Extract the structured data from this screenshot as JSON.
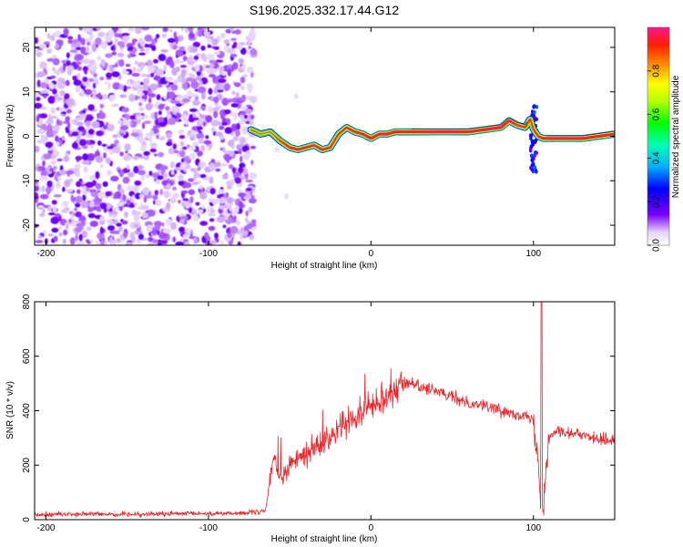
{
  "figure": {
    "title": "S196.2025.332.17.44.G12"
  },
  "chart_data": [
    {
      "id": "spectrogram",
      "type": "heatmap",
      "title": "",
      "xlabel": "Height of straight line (km)",
      "ylabel": "Frequency (Hz)",
      "xlim": [
        -207,
        150
      ],
      "ylim": [
        -24.5,
        24.5
      ],
      "xticks": [
        -200,
        -100,
        0,
        100
      ],
      "yticks": [
        -20,
        -10,
        0,
        10,
        20
      ],
      "colorbar": {
        "label": "Normalized spectral amplitude",
        "range": [
          0,
          1
        ],
        "ticks": [
          0.0,
          0.2,
          0.4,
          0.6,
          0.8
        ],
        "tick_labels": [
          "0.0",
          "0.2",
          "0.4",
          "0.6",
          "0.8"
        ]
      },
      "noise_region_x": [
        -207,
        -75
      ],
      "ridge": {
        "x": [
          -74,
          -68,
          -62,
          -56,
          -50,
          -45,
          -40,
          -35,
          -30,
          -25,
          -20,
          -15,
          -10,
          -5,
          0,
          5,
          10,
          15,
          20,
          30,
          40,
          50,
          60,
          70,
          80,
          85,
          90,
          95,
          98,
          100,
          103,
          106,
          110,
          120,
          130,
          140,
          150
        ],
        "freq": [
          1.5,
          0.5,
          1.0,
          -1.0,
          -2.5,
          -3.0,
          -2.5,
          -2.0,
          -3.0,
          -2.5,
          0.5,
          2.0,
          1.0,
          0.5,
          -0.5,
          0.5,
          0.5,
          1.0,
          1.0,
          1.0,
          1.0,
          1.0,
          1.0,
          1.5,
          2.0,
          3.5,
          2.5,
          2.0,
          4.0,
          1.5,
          0.0,
          -0.5,
          -0.5,
          -0.5,
          -0.5,
          0.0,
          0.5
        ],
        "amplitude": [
          0.5,
          0.45,
          0.45,
          0.55,
          0.75,
          0.8,
          0.75,
          0.7,
          0.75,
          0.65,
          0.6,
          0.65,
          0.75,
          0.8,
          0.85,
          0.85,
          0.9,
          0.9,
          0.8,
          0.85,
          0.95,
          0.95,
          0.85,
          0.9,
          0.95,
          0.8,
          0.7,
          0.6,
          0.55,
          0.6,
          0.65,
          0.8,
          0.9,
          0.95,
          0.9,
          0.85,
          0.8
        ]
      },
      "burst_at_x": 100,
      "burst_freq_range": [
        -8,
        7
      ]
    },
    {
      "id": "snr",
      "type": "line",
      "title": "",
      "xlabel": "Height of straight line (km)",
      "ylabel": "SNR (10 * v/v)",
      "xlim": [
        -207,
        150
      ],
      "ylim": [
        0,
        800
      ],
      "xticks": [
        -200,
        -100,
        0,
        100
      ],
      "yticks": [
        0,
        200,
        400,
        600,
        800
      ],
      "color": "#e8262c",
      "series": [
        {
          "name": "SNR",
          "x": [
            -207,
            -150,
            -100,
            -75,
            -65,
            -62,
            -60,
            -58,
            -55,
            -50,
            -45,
            -40,
            -35,
            -30,
            -25,
            -20,
            -15,
            -10,
            -5,
            0,
            5,
            10,
            15,
            20,
            25,
            30,
            35,
            40,
            50,
            60,
            70,
            80,
            90,
            95,
            100,
            102,
            104,
            106,
            108,
            110,
            115,
            120,
            130,
            140,
            150
          ],
          "y": [
            20,
            20,
            22,
            25,
            30,
            150,
            250,
            180,
            150,
            200,
            220,
            240,
            260,
            280,
            300,
            330,
            360,
            380,
            400,
            420,
            440,
            460,
            480,
            500,
            500,
            490,
            480,
            470,
            450,
            430,
            420,
            400,
            390,
            380,
            360,
            250,
            120,
            60,
            200,
            320,
            330,
            320,
            310,
            300,
            290
          ]
        }
      ],
      "noise_amplitude": 22,
      "spike": {
        "x": 105,
        "y": 800
      }
    }
  ]
}
